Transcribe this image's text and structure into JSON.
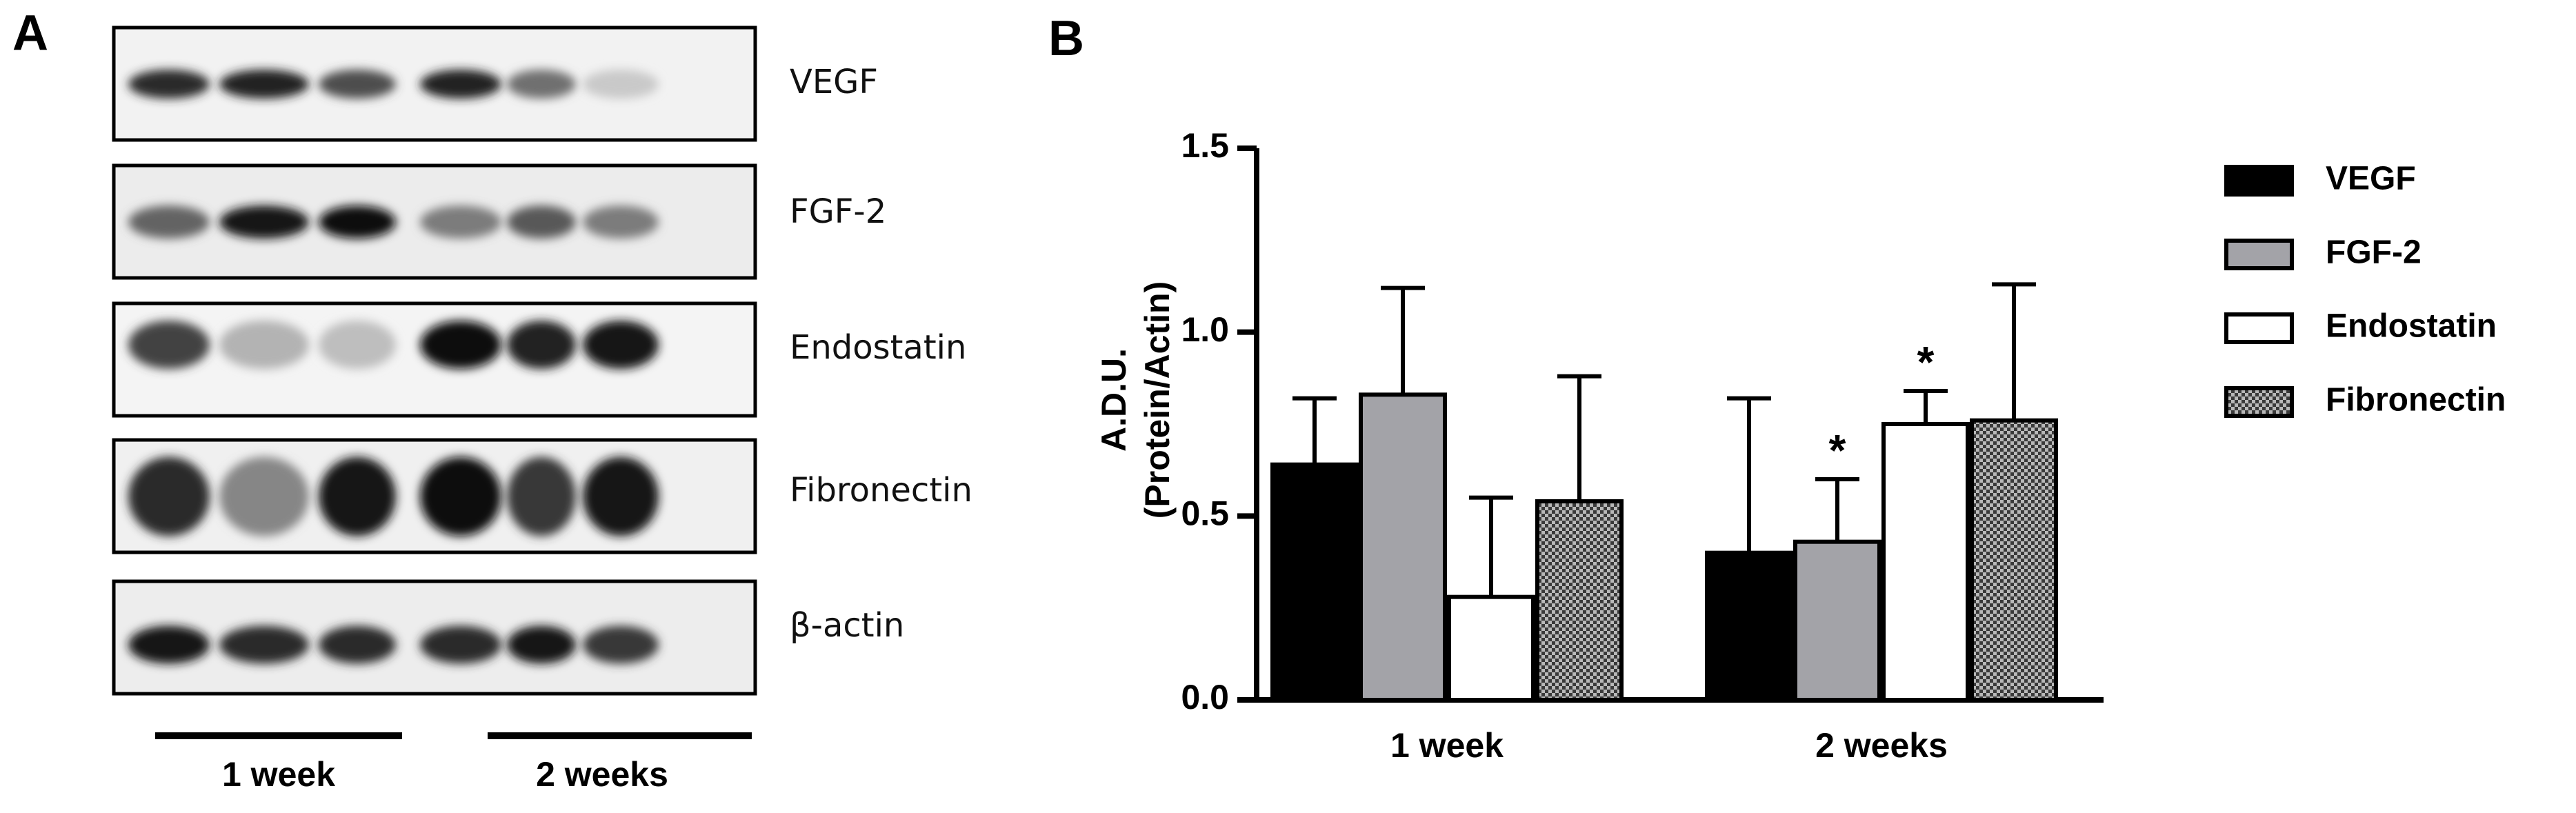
{
  "panel_a": {
    "letter": "A",
    "blots": [
      {
        "label": "VEGF",
        "bands": [
          0.85,
          0.9,
          0.7,
          0.9,
          0.55,
          0.15
        ]
      },
      {
        "label": "FGF-2",
        "bands": [
          0.6,
          0.95,
          1.0,
          0.5,
          0.65,
          0.5
        ]
      },
      {
        "label": "Endostatin",
        "bands": [
          0.75,
          0.25,
          0.2,
          1.0,
          0.9,
          0.95
        ]
      },
      {
        "label": "Fibronectin",
        "bands": [
          0.85,
          0.45,
          0.95,
          1.0,
          0.8,
          0.95
        ]
      },
      {
        "label": "β-actin",
        "bands": [
          0.95,
          0.85,
          0.85,
          0.85,
          0.95,
          0.8
        ]
      }
    ],
    "groups": [
      {
        "label": "1 week"
      },
      {
        "label": "2 weeks"
      }
    ]
  },
  "chart_data": {
    "panel_letter": "B",
    "type": "bar",
    "categories": [
      "1 week",
      "2 weeks"
    ],
    "ylabel_line1": "A.D.U.",
    "ylabel_line2": "(Protein/Actin)",
    "ylim": [
      0,
      1.5
    ],
    "yticks": [
      "0.0",
      "0.5",
      "1.0",
      "1.5"
    ],
    "grid": false,
    "legend_position": "right",
    "series": [
      {
        "name": "VEGF",
        "fill": "#000000",
        "pattern": "solid",
        "values": [
          0.64,
          0.4
        ],
        "errors": [
          0.18,
          0.42
        ],
        "significance": [
          "",
          ""
        ]
      },
      {
        "name": "FGF-2",
        "fill": "#a3a3a8",
        "pattern": "solid",
        "values": [
          0.83,
          0.43
        ],
        "errors": [
          0.29,
          0.17
        ],
        "significance": [
          "",
          "*"
        ]
      },
      {
        "name": "Endostatin",
        "fill": "#ffffff",
        "pattern": "solid",
        "values": [
          0.28,
          0.75
        ],
        "errors": [
          0.27,
          0.09
        ],
        "significance": [
          "",
          "*"
        ]
      },
      {
        "name": "Fibronectin",
        "fill": "#6e6e6e",
        "pattern": "checker",
        "values": [
          0.54,
          0.76
        ],
        "errors": [
          0.34,
          0.37
        ],
        "significance": [
          "",
          ""
        ]
      }
    ]
  }
}
